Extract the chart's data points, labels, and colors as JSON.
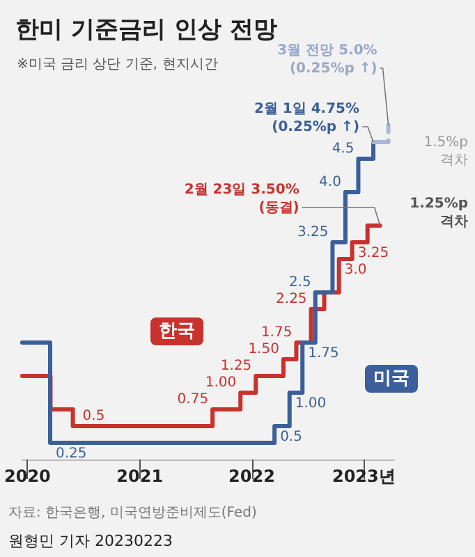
{
  "chart_data": {
    "type": "step",
    "title": "한미 기준금리 인상 전망",
    "xlim": [
      "2019-12-15",
      "2023-04-10"
    ],
    "xticks": [
      {
        "value": "2020",
        "label": "2020"
      },
      {
        "value": "2021",
        "label": "2021"
      },
      {
        "value": "2022",
        "label": "2022"
      },
      {
        "value": "2023",
        "label": "2023년"
      }
    ],
    "tick_labels": "x",
    "grid": false,
    "legend": false,
    "marker": "none",
    "line_style": "solid",
    "series": [
      {
        "name": "한국",
        "color": "#c8322d",
        "x": [
          "2019-12-15",
          "2020-03-16",
          "2020-05-28",
          "2021-08-26",
          "2021-11-25",
          "2022-01-14",
          "2022-04-14",
          "2022-05-26",
          "2022-07-13",
          "2022-08-25",
          "2022-10-12",
          "2022-11-24",
          "2023-01-13",
          "2023-02-23"
        ],
        "values": [
          1.25,
          0.75,
          0.5,
          0.75,
          1.0,
          1.25,
          1.5,
          1.75,
          2.25,
          2.5,
          3.0,
          3.25,
          3.5,
          3.5
        ],
        "value_labels": [
          null,
          null,
          "0.5",
          "0.75",
          "1.00",
          "1.25",
          "1.50",
          "1.75",
          "2.25",
          null,
          "3.0",
          "3.25",
          null,
          null
        ]
      },
      {
        "name": "미국",
        "color": "#3a5f9a",
        "x": [
          "2019-12-15",
          "2020-03-15",
          "2022-03-16",
          "2022-05-04",
          "2022-06-15",
          "2022-07-27",
          "2022-09-21",
          "2022-11-02",
          "2022-12-14",
          "2023-02-01"
        ],
        "values": [
          1.75,
          0.25,
          0.5,
          1.0,
          1.75,
          2.5,
          3.25,
          4.0,
          4.5,
          4.75
        ],
        "value_labels": [
          null,
          "0.25",
          "0.5",
          "1.00",
          "1.75",
          "2.5",
          "3.25",
          "4.0",
          "4.5",
          null
        ]
      },
      {
        "color": "#a9b8d8",
        "line_style": "dashed",
        "x": [
          "2023-02-01",
          "2023-03-22"
        ],
        "values": [
          4.75,
          5.0
        ]
      }
    ],
    "annotations": [
      "※미국 금리 상단 기준, 현지시간",
      {
        "text": "2월 1일 4.75%\n(0.25%p ↑)",
        "x": "2023-02-01",
        "y": 4.75
      },
      {
        "text": "3월 전망 5.0%\n(0.25%p ↑)",
        "x": "2023-03-22",
        "y": 5.0
      },
      {
        "text": "2월 23일 3.50%\n(동결)",
        "x": "2023-02-23",
        "y": 3.5
      },
      "1.5%p\n격차",
      "1.25%p\n격차",
      "자료: 한국은행, 미국연방준비제도(Fed)",
      "원형민 기자 20230223"
    ]
  }
}
